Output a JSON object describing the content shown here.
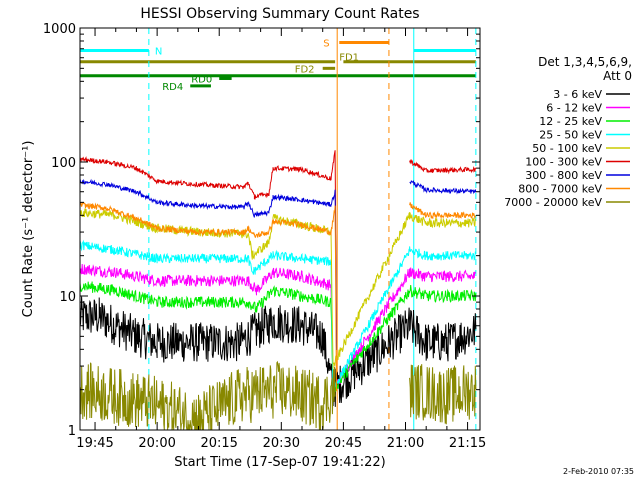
{
  "chart_data": {
    "type": "line",
    "title": "HESSI Observing Summary Count Rates",
    "ylabel": "Count Rate (s⁻¹ detector⁻¹)",
    "xlabel": "Start Time (17-Sep-07 19:41:22)",
    "yscale": "log",
    "ylim": [
      1,
      1000
    ],
    "xlim": [
      "19:41:22",
      "21:18:00"
    ],
    "x_ticks": [
      "19:45",
      "20:00",
      "20:15",
      "20:30",
      "20:45",
      "21:00",
      "21:15"
    ],
    "y_ticks": [
      "1",
      "10",
      "100",
      "1000"
    ],
    "footer_date": "2-Feb-2010 07:35",
    "legend": {
      "header1": "Det 1,3,4,5,6,9,",
      "header2": "Att 0",
      "placement": "right",
      "entries": [
        {
          "label": "3 - 6 keV",
          "color": "#000000"
        },
        {
          "label": "6 - 12 keV",
          "color": "#ff00ff"
        },
        {
          "label": "12 - 25 keV",
          "color": "#00ee00"
        },
        {
          "label": "25 - 50 keV",
          "color": "#00ffff"
        },
        {
          "label": "50 - 100 keV",
          "color": "#cccc00"
        },
        {
          "label": "100 - 300 keV",
          "color": "#dd0000"
        },
        {
          "label": "300 - 800 keV",
          "color": "#0000dd"
        },
        {
          "label": "800 - 7000 keV",
          "color": "#ff8800"
        },
        {
          "label": "7000 - 20000 keV",
          "color": "#888800"
        }
      ]
    },
    "flag_bars": [
      {
        "label": "N",
        "color": "#00ffff",
        "segments": [
          [
            "19:41:22",
            "19:58:00"
          ],
          [
            "21:02:00",
            "21:17:00"
          ]
        ],
        "y": 680
      },
      {
        "label": "S",
        "color": "#ff8800",
        "segments": [
          [
            "20:44:00",
            "20:56:00"
          ]
        ],
        "y": 780
      },
      {
        "label": "FD1",
        "color": "#888800",
        "segments": [
          [
            "19:41:22",
            "20:43:00"
          ],
          [
            "20:45:00",
            "21:17:00"
          ]
        ],
        "y": 560
      },
      {
        "label": "FD2",
        "color": "#888800",
        "segments": [
          [
            "20:40:00",
            "20:43:00"
          ]
        ],
        "y": 500
      },
      {
        "label": "RD0",
        "color": "#008800",
        "segments": [
          [
            "20:15:00",
            "20:18:00"
          ]
        ],
        "y": 420
      },
      {
        "label": "RD4",
        "color": "#008800",
        "segments": [
          [
            "20:08:00",
            "20:13:00"
          ]
        ],
        "y": 370
      },
      {
        "label": "",
        "color": "#008800",
        "segments": [
          [
            "19:41:22",
            "21:17:00"
          ]
        ],
        "y": 440
      }
    ],
    "vertical_lines": [
      {
        "x": "19:58:00",
        "color": "#00ffff",
        "style": "dashed"
      },
      {
        "x": "21:02:00",
        "color": "#00ffff",
        "style": "solid"
      },
      {
        "x": "21:17:00",
        "color": "#00ffff",
        "style": "dashed"
      },
      {
        "x": "20:56:00",
        "color": "#ff8800",
        "style": "dashed"
      },
      {
        "x": "20:43:30",
        "color": "#ff8800",
        "style": "solid"
      }
    ],
    "series": [
      {
        "name": "3 - 6 keV",
        "color": "#000000",
        "noise": 0.35,
        "points": [
          [
            "19:41:22",
            7
          ],
          [
            "19:46:00",
            7
          ],
          [
            "19:50:00",
            6
          ],
          [
            "19:55:00",
            5
          ],
          [
            "20:00:00",
            4.5
          ],
          [
            "20:10:00",
            4.5
          ],
          [
            "20:20:00",
            4.5
          ],
          [
            "20:24:00",
            5.5
          ],
          [
            "20:26:00",
            6
          ],
          [
            "20:28:00",
            6.5
          ],
          [
            "20:35:00",
            6
          ],
          [
            "20:40:00",
            5
          ],
          [
            "20:42:30",
            2
          ],
          [
            "21:01:00",
            6
          ],
          [
            "21:05:00",
            4.5
          ],
          [
            "21:10:00",
            4.5
          ],
          [
            "21:17:00",
            5.5
          ]
        ]
      },
      {
        "name": "6 - 12 keV",
        "color": "#ff00ff",
        "noise": 0.1,
        "points": [
          [
            "19:41:22",
            16
          ],
          [
            "19:50:00",
            15
          ],
          [
            "20:00:00",
            13
          ],
          [
            "20:10:00",
            13
          ],
          [
            "20:22:00",
            13
          ],
          [
            "20:24:00",
            11
          ],
          [
            "20:28:00",
            15
          ],
          [
            "20:35:00",
            14
          ],
          [
            "20:42:00",
            12
          ],
          [
            "20:42:30",
            2
          ],
          [
            "21:01:00",
            15
          ],
          [
            "21:05:00",
            14
          ],
          [
            "21:17:00",
            14
          ]
        ]
      },
      {
        "name": "12 - 25 keV",
        "color": "#00ee00",
        "noise": 0.1,
        "points": [
          [
            "19:41:22",
            12
          ],
          [
            "19:50:00",
            11
          ],
          [
            "20:00:00",
            9
          ],
          [
            "20:10:00",
            9
          ],
          [
            "20:22:00",
            9
          ],
          [
            "20:24:00",
            8
          ],
          [
            "20:28:00",
            11
          ],
          [
            "20:35:00",
            10
          ],
          [
            "20:42:00",
            9
          ],
          [
            "20:42:30",
            2
          ],
          [
            "21:01:00",
            11
          ],
          [
            "21:05:00",
            10
          ],
          [
            "21:17:00",
            10
          ]
        ]
      },
      {
        "name": "25 - 50 keV",
        "color": "#00ffff",
        "noise": 0.08,
        "points": [
          [
            "19:41:22",
            24
          ],
          [
            "19:50:00",
            22
          ],
          [
            "20:00:00",
            19
          ],
          [
            "20:10:00",
            19
          ],
          [
            "20:22:00",
            19
          ],
          [
            "20:23:00",
            15
          ],
          [
            "20:28:00",
            20
          ],
          [
            "20:35:00",
            19
          ],
          [
            "20:42:00",
            18
          ],
          [
            "20:42:30",
            2
          ],
          [
            "21:01:00",
            22
          ],
          [
            "21:05:00",
            20
          ],
          [
            "21:17:00",
            20
          ]
        ]
      },
      {
        "name": "50 - 100 keV",
        "color": "#cccc00",
        "noise": 0.08,
        "points": [
          [
            "19:41:22",
            42
          ],
          [
            "19:50:00",
            40
          ],
          [
            "20:00:00",
            32
          ],
          [
            "20:10:00",
            30
          ],
          [
            "20:22:00",
            29
          ],
          [
            "20:23:00",
            20
          ],
          [
            "20:27:00",
            25
          ],
          [
            "20:28:00",
            38
          ],
          [
            "20:35:00",
            34
          ],
          [
            "20:42:00",
            30
          ],
          [
            "20:42:30",
            3
          ],
          [
            "21:01:00",
            40
          ],
          [
            "21:05:00",
            35
          ],
          [
            "21:17:00",
            35
          ]
        ]
      },
      {
        "name": "100 - 300 keV",
        "color": "#dd0000",
        "noise": 0.04,
        "points": [
          [
            "19:41:22",
            105
          ],
          [
            "19:48:00",
            100
          ],
          [
            "19:55:00",
            90
          ],
          [
            "20:00:00",
            72
          ],
          [
            "20:10:00",
            68
          ],
          [
            "20:21:00",
            65
          ],
          [
            "20:22:00",
            70
          ],
          [
            "20:23:30",
            55
          ],
          [
            "20:27:00",
            58
          ],
          [
            "20:28:00",
            90
          ],
          [
            "20:35:00",
            88
          ],
          [
            "20:42:00",
            75
          ],
          [
            "20:43:00",
            120
          ],
          [
            "20:43:20",
            4
          ],
          [
            "21:01:00",
            102
          ],
          [
            "21:05:00",
            86
          ],
          [
            "21:17:00",
            88
          ]
        ]
      },
      {
        "name": "300 - 800 keV",
        "color": "#0000dd",
        "noise": 0.04,
        "points": [
          [
            "19:41:22",
            72
          ],
          [
            "19:48:00",
            68
          ],
          [
            "19:55:00",
            60
          ],
          [
            "20:00:00",
            50
          ],
          [
            "20:10:00",
            47
          ],
          [
            "20:21:00",
            46
          ],
          [
            "20:22:00",
            50
          ],
          [
            "20:23:30",
            40
          ],
          [
            "20:27:00",
            42
          ],
          [
            "20:28:00",
            55
          ],
          [
            "20:35:00",
            52
          ],
          [
            "20:42:00",
            48
          ],
          [
            "20:43:00",
            60
          ],
          [
            "20:43:20",
            4
          ],
          [
            "21:01:00",
            72
          ],
          [
            "21:05:00",
            62
          ],
          [
            "21:17:00",
            60
          ]
        ]
      },
      {
        "name": "800 - 7000 keV",
        "color": "#ff8800",
        "noise": 0.05,
        "points": [
          [
            "19:41:22",
            48
          ],
          [
            "19:48:00",
            45
          ],
          [
            "19:55:00",
            38
          ],
          [
            "20:00:00",
            32
          ],
          [
            "20:10:00",
            30
          ],
          [
            "20:21:00",
            30
          ],
          [
            "20:22:00",
            32
          ],
          [
            "20:23:30",
            28
          ],
          [
            "20:27:00",
            30
          ],
          [
            "20:28:00",
            36
          ],
          [
            "20:35:00",
            34
          ],
          [
            "20:42:00",
            30
          ],
          [
            "20:43:00",
            45
          ],
          [
            "20:43:20",
            2
          ],
          [
            "21:01:00",
            48
          ],
          [
            "21:05:00",
            40
          ],
          [
            "21:17:00",
            40
          ]
        ]
      },
      {
        "name": "7000 - 20000 keV",
        "color": "#888800",
        "noise": 0.5,
        "points": [
          [
            "19:41:22",
            2
          ],
          [
            "19:58:00",
            1.6
          ],
          [
            "20:10:00",
            1.2
          ],
          [
            "20:20:00",
            1.8
          ],
          [
            "20:30:00",
            2
          ],
          [
            "20:40:00",
            1.6
          ],
          [
            "20:43:00",
            2
          ],
          [
            "21:01:00",
            2
          ],
          [
            "21:10:00",
            1.8
          ],
          [
            "21:17:00",
            2
          ]
        ]
      }
    ]
  }
}
